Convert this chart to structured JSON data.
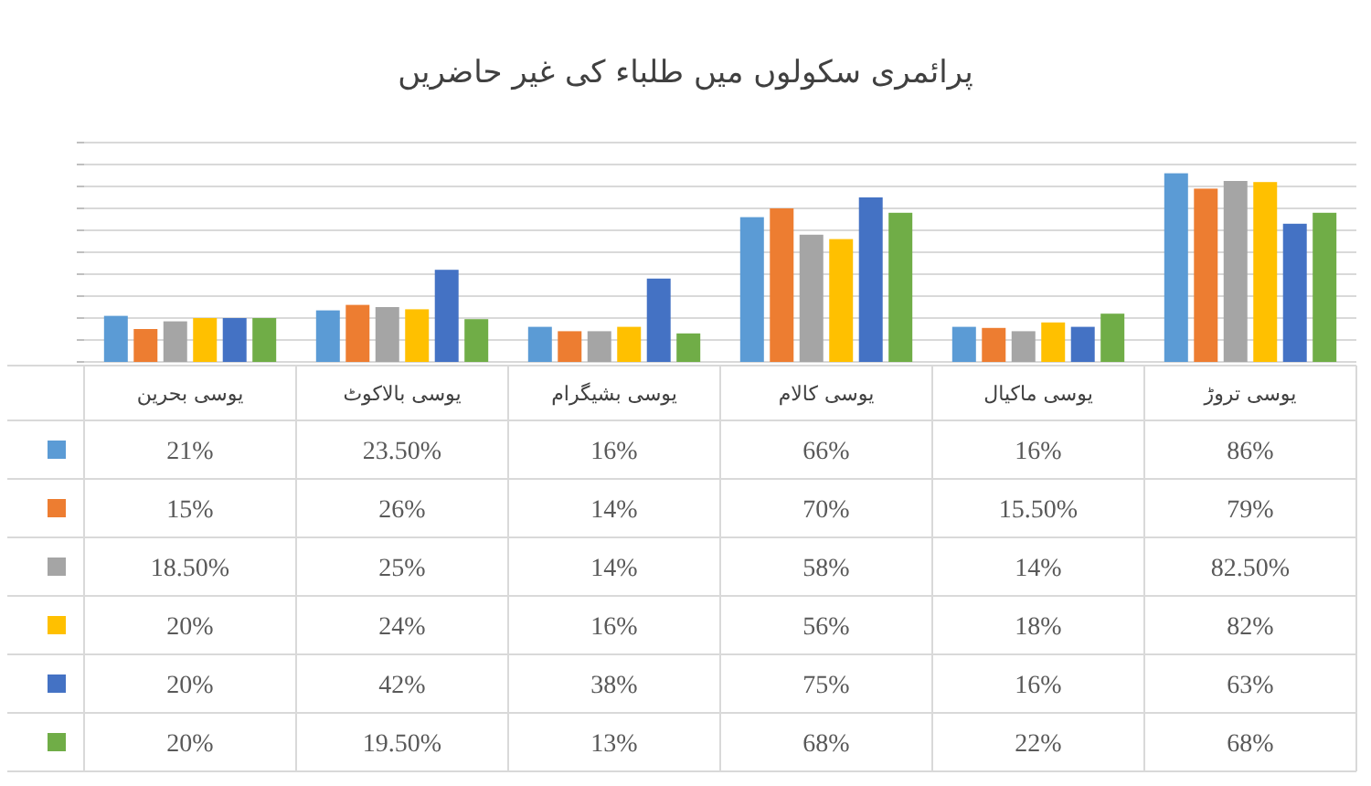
{
  "chart_data": {
    "type": "bar",
    "title": "پرائمری سکولوں میں طلباء کی غیر حاضریں",
    "categories": [
      "یوسی بحرین",
      "یوسی بالاکوٹ",
      "یوسی بشیگرام",
      "یوسی کالام",
      "یوسی ماکیال",
      "یوسی تروڑ"
    ],
    "series": [
      {
        "color": "#5b9bd5",
        "values": [
          21,
          23.5,
          16,
          66,
          16,
          86
        ],
        "value_labels": [
          "21%",
          "23.50%",
          "16%",
          "66%",
          "16%",
          "86%"
        ]
      },
      {
        "color": "#ed7d31",
        "values": [
          15,
          26,
          14,
          70,
          15.5,
          79
        ],
        "value_labels": [
          "15%",
          "26%",
          "14%",
          "70%",
          "15.50%",
          "79%"
        ]
      },
      {
        "color": "#a5a5a5",
        "values": [
          18.5,
          25,
          14,
          58,
          14,
          82.5
        ],
        "value_labels": [
          "18.50%",
          "25%",
          "14%",
          "58%",
          "14%",
          "82.50%"
        ]
      },
      {
        "color": "#ffc000",
        "values": [
          20,
          24,
          16,
          56,
          18,
          82
        ],
        "value_labels": [
          "20%",
          "24%",
          "16%",
          "56%",
          "18%",
          "82%"
        ]
      },
      {
        "color": "#4472c4",
        "values": [
          20,
          42,
          38,
          75,
          16,
          63
        ],
        "value_labels": [
          "20%",
          "42%",
          "38%",
          "75%",
          "16%",
          "63%"
        ]
      },
      {
        "color": "#70ad47",
        "values": [
          20,
          19.5,
          13,
          68,
          22,
          68
        ],
        "value_labels": [
          "20%",
          "19.50%",
          "13%",
          "68%",
          "22%",
          "68%"
        ]
      }
    ],
    "ylim": [
      0,
      100
    ],
    "yticks": [
      {
        "value": 0,
        "label": null
      },
      {
        "value": 10,
        "label": null
      },
      {
        "value": 20,
        "label": null
      },
      {
        "value": 30,
        "label": null
      },
      {
        "value": 40,
        "label": null
      },
      {
        "value": 50,
        "label": null
      },
      {
        "value": 60,
        "label": null
      },
      {
        "value": 70,
        "label": null
      },
      {
        "value": 80,
        "label": null
      },
      {
        "value": 90,
        "label": null
      },
      {
        "value": 100,
        "label": null
      }
    ],
    "grid": "y"
  }
}
